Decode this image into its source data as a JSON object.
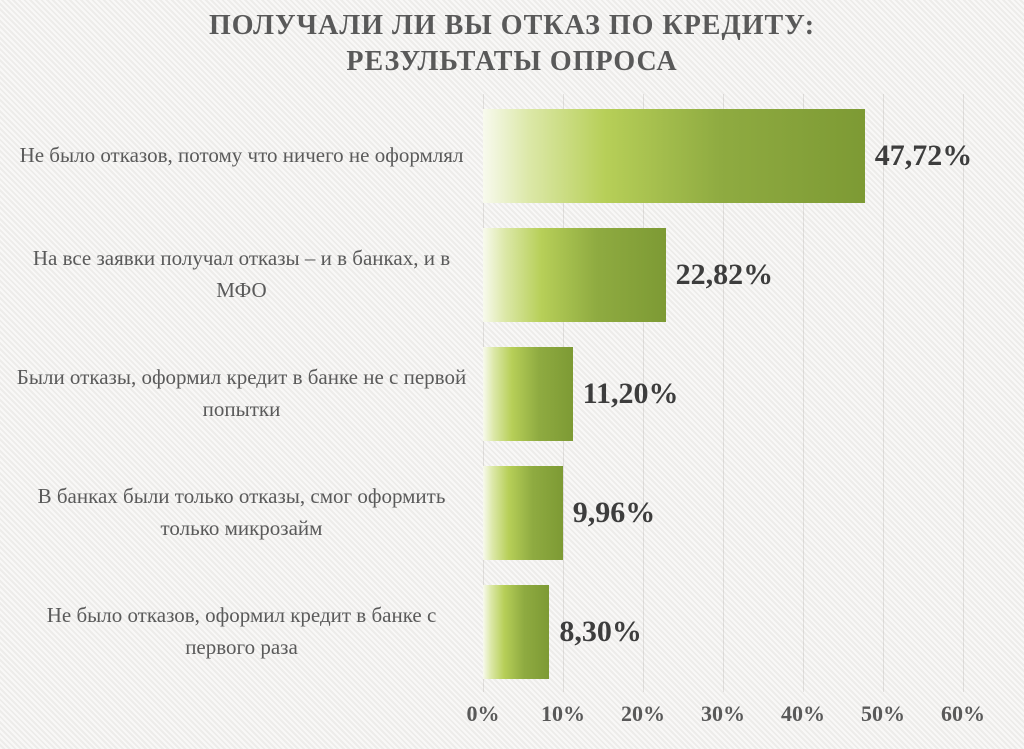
{
  "title": {
    "line1": "ПОЛУЧАЛИ ЛИ ВЫ ОТКАЗ ПО КРЕДИТУ:",
    "line2": "РЕЗУЛЬТАТЫ ОПРОСА"
  },
  "chart_data": {
    "type": "bar",
    "orientation": "horizontal",
    "title": "ПОЛУЧАЛИ ЛИ ВЫ ОТКАЗ ПО КРЕДИТУ: РЕЗУЛЬТАТЫ ОПРОСА",
    "categories": [
      "Не было отказов, потому что ничего не оформлял",
      "На все заявки получал отказы – и в банках, и в МФО",
      "Были отказы, оформил кредит в банке не с первой попытки",
      "В банках были только отказы, смог оформить только микрозайм",
      "Не было отказов, оформил кредит в банке с первого раза"
    ],
    "values": [
      47.72,
      22.82,
      11.2,
      9.96,
      8.3
    ],
    "value_labels": [
      "47,72%",
      "22,82%",
      "11,20%",
      "9,96%",
      "8,30%"
    ],
    "x_ticks": [
      "0%",
      "10%",
      "20%",
      "30%",
      "40%",
      "50%",
      "60%"
    ],
    "xlim": [
      0,
      60
    ],
    "grid": true,
    "legend": "none",
    "colors": {
      "bar_gradient_start": "#f8faee",
      "bar_gradient_mid": "#b7cf58",
      "bar_gradient_end": "#7d9a34",
      "text_gray": "#595959",
      "value_text": "#3d3d3d",
      "background": "#f1f0ee",
      "gridline": "#e2e1dd"
    }
  }
}
